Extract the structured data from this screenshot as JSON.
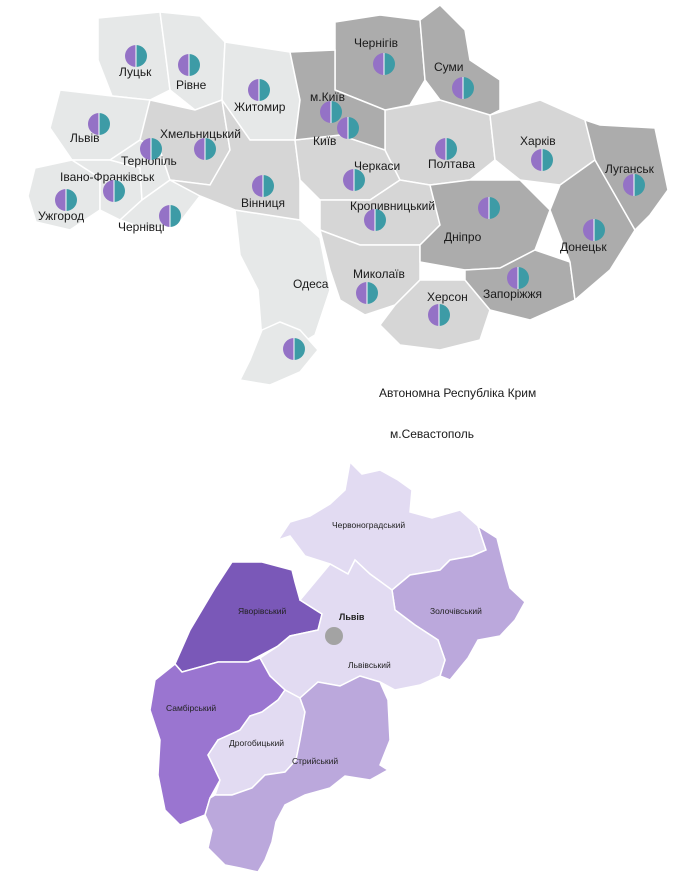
{
  "colors": {
    "dark_region": "#acacac",
    "light_region": "#d6d6d6",
    "pale_region": "#e6e8e8",
    "pie_left": "#9472c6",
    "pie_right": "#3d9ba6",
    "district_darkest": "#7a58b8",
    "district_dark": "#9a75d0",
    "district_mid": "#bba8dc",
    "district_light": "#e2dbf2",
    "lviv_city_dot": "#a3a3a3"
  },
  "ukraine_map": {
    "regions": [
      {
        "id": "lutsk",
        "label": "Луцьк",
        "icon": "pie-chart-icon"
      },
      {
        "id": "rivne",
        "label": "Рівне",
        "icon": "pie-chart-icon"
      },
      {
        "id": "zhytomyr",
        "label": "Житомир",
        "icon": "pie-chart-icon"
      },
      {
        "id": "chernihiv",
        "label": "Чернігів",
        "icon": "pie-chart-icon"
      },
      {
        "id": "sumy",
        "label": "Суми",
        "icon": "pie-chart-icon"
      },
      {
        "id": "kyiv_city",
        "label": "м.Київ",
        "icon": "pie-chart-icon"
      },
      {
        "id": "kyiv",
        "label": "Київ",
        "icon": "pie-chart-icon"
      },
      {
        "id": "lviv",
        "label": "Львів",
        "icon": "pie-chart-icon"
      },
      {
        "id": "khmelnytskyi",
        "label": "Хмельницький",
        "icon": "pie-chart-icon"
      },
      {
        "id": "ternopil",
        "label": "Тернопіль",
        "icon": "pie-chart-icon"
      },
      {
        "id": "ivano_frankivsk",
        "label": "Івано-Франківськ",
        "icon": "pie-chart-icon"
      },
      {
        "id": "uzhhorod",
        "label": "Ужгород",
        "icon": "pie-chart-icon"
      },
      {
        "id": "chernivtsi",
        "label": "Чернівці",
        "icon": "pie-chart-icon"
      },
      {
        "id": "vinnytsia",
        "label": "Вінниця",
        "icon": "pie-chart-icon"
      },
      {
        "id": "cherkasy",
        "label": "Черкаси",
        "icon": "pie-chart-icon"
      },
      {
        "id": "poltava",
        "label": "Полтава",
        "icon": "pie-chart-icon"
      },
      {
        "id": "kharkiv",
        "label": "Харків",
        "icon": "pie-chart-icon"
      },
      {
        "id": "luhansk",
        "label": "Луганськ",
        "icon": "pie-chart-icon"
      },
      {
        "id": "kropyvnytskyi",
        "label": "Кропивницький",
        "icon": "pie-chart-icon"
      },
      {
        "id": "dnipro",
        "label": "Дніпро",
        "icon": "pie-chart-icon"
      },
      {
        "id": "donetsk",
        "label": "Донецьк",
        "icon": "pie-chart-icon"
      },
      {
        "id": "odesa",
        "label": "Одеса",
        "icon": "pie-chart-icon"
      },
      {
        "id": "mykolaiv",
        "label": "Миколаїв",
        "icon": "pie-chart-icon"
      },
      {
        "id": "zaporizhzhia",
        "label": "Запоріжжя",
        "icon": "pie-chart-icon"
      },
      {
        "id": "kherson",
        "label": "Херсон",
        "icon": "pie-chart-icon"
      },
      {
        "id": "crimea",
        "label": "Автономна Республіка Крим",
        "icon": "pie-chart-icon"
      },
      {
        "id": "sevastopol",
        "label": "м.Севастополь"
      }
    ]
  },
  "lviv_oblast_map": {
    "districts": [
      {
        "id": "chervonohrad",
        "label": "Червоноградський",
        "shade": "light"
      },
      {
        "id": "yavoriv",
        "label": "Яворівський",
        "shade": "darkest"
      },
      {
        "id": "lviv_city",
        "label": "Львів"
      },
      {
        "id": "zolochiv",
        "label": "Золочівський",
        "shade": "mid"
      },
      {
        "id": "lvivskyi",
        "label": "Львівський",
        "shade": "light"
      },
      {
        "id": "sambir",
        "label": "Самбірський",
        "shade": "dark"
      },
      {
        "id": "drohobych",
        "label": "Дрогобицький",
        "shade": "light"
      },
      {
        "id": "stryi",
        "label": "Стрийський",
        "shade": "mid"
      }
    ]
  }
}
